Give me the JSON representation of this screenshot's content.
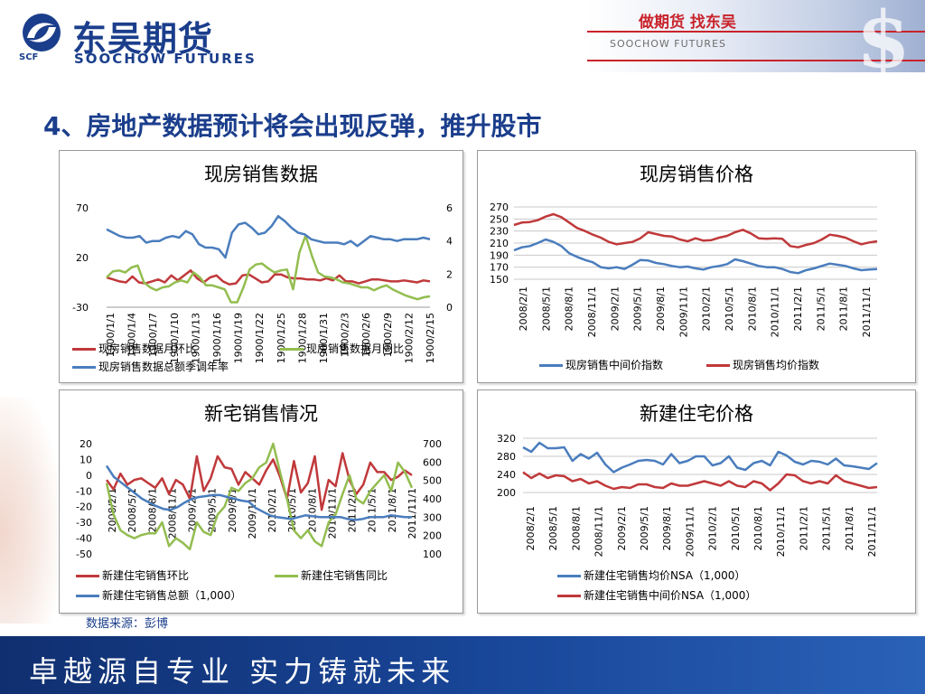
{
  "header": {
    "logo_cn": "东吴期货",
    "logo_en": "SOOCHOW FUTURES",
    "logo_abbr": "SCF",
    "slogan": "做期货 找东吴",
    "slogan_en": "SOOCHOW FUTURES",
    "dollar_glyph": "$"
  },
  "page": {
    "title": "4、房地产数据预计将会出现反弹，推升股市",
    "source": "数据来源：彭博",
    "footer": "卓越源自专业 实力铸就未来"
  },
  "chart_data": [
    {
      "type": "line",
      "title": "现房销售数据",
      "x_tick_labels": [
        "1900/1/1",
        "1900/1/4",
        "1900/1/7",
        "1900/1/10",
        "1900/1/13",
        "1900/1/16",
        "1900/1/19",
        "1900/1/22",
        "1900/1/25",
        "1900/1/28",
        "1900/1/31",
        "1900/2/3",
        "1900/2/6",
        "1900/2/9",
        "1900/2/12",
        "1900/2/15"
      ],
      "y_left_ticks": [
        "70",
        "20",
        "-30"
      ],
      "y_left_range": [
        -30,
        70
      ],
      "y_right_ticks": [
        "6",
        "4",
        "2",
        "0"
      ],
      "y_right_range": [
        0,
        6
      ],
      "legend": [
        "现房销售数据月环比",
        "现房销售数据月同比",
        "现房销售数据总额季调年率"
      ],
      "series": [
        {
          "name": "现房销售数据月环比",
          "axis": "left",
          "color": "#c0393b",
          "values": [
            0,
            -2,
            -4,
            -5,
            1,
            -5,
            -6,
            -4,
            -2,
            -5,
            2,
            -3,
            2,
            7,
            -1,
            -5,
            0,
            2,
            -4,
            -7,
            -6,
            2,
            3,
            -1,
            -5,
            -4,
            3,
            3,
            0,
            -1,
            -1,
            -2,
            -2,
            -3,
            -1,
            -3,
            2,
            -4,
            -4,
            -6,
            -4,
            -2,
            -2,
            -3,
            -4,
            -4,
            -3,
            -4,
            -5,
            -3,
            -4
          ]
        },
        {
          "name": "现房销售数据月同比",
          "axis": "left",
          "color": "#93bd4f",
          "values": [
            0,
            6,
            7,
            5,
            10,
            12,
            -5,
            -10,
            -13,
            -10,
            -9,
            -5,
            -3,
            -5,
            5,
            0,
            -8,
            -8,
            -10,
            -12,
            -25,
            -25,
            -10,
            8,
            13,
            14,
            9,
            5,
            7,
            8,
            -12,
            25,
            42,
            22,
            5,
            1,
            0,
            -2,
            -5,
            -6,
            -8,
            -10,
            -10,
            -13,
            -10,
            -8,
            -12,
            -15,
            -18,
            -20,
            -22,
            -20,
            -19
          ]
        },
        {
          "name": "现房销售数据总额季调年率",
          "axis": "right",
          "color": "#4a7dbd",
          "values": [
            4.7,
            4.5,
            4.3,
            4.2,
            4.2,
            4.3,
            3.9,
            4.0,
            4.0,
            4.2,
            4.3,
            4.2,
            4.6,
            4.4,
            3.8,
            3.6,
            3.6,
            3.5,
            3.0,
            4.5,
            5.0,
            5.1,
            4.8,
            4.4,
            4.5,
            4.9,
            5.5,
            5.2,
            4.8,
            4.5,
            4.4,
            4.1,
            4.0,
            3.9,
            3.9,
            3.9,
            3.8,
            4.0,
            3.7,
            4.0,
            4.3,
            4.2,
            4.1,
            4.1,
            4.0,
            4.1,
            4.1,
            4.1,
            4.2,
            4.1
          ]
        }
      ]
    },
    {
      "type": "line",
      "title": "现房销售价格",
      "x_tick_labels": [
        "2008/2/1",
        "2008/5/1",
        "2008/8/1",
        "2008/11/1",
        "2009/2/1",
        "2009/5/1",
        "2009/8/1",
        "2009/11/1",
        "2010/2/1",
        "2010/5/1",
        "2010/8/1",
        "2010/11/1",
        "2011/2/1",
        "2011/5/1",
        "2011/8/1",
        "2011/11/1"
      ],
      "y_ticks": [
        "270",
        "250",
        "230",
        "210",
        "190",
        "170",
        "150"
      ],
      "y_range": [
        150,
        270
      ],
      "legend": [
        "现房销售中间价指数",
        "现房销售均价指数"
      ],
      "series": [
        {
          "name": "现房销售中间价指数",
          "color": "#4a7dbd",
          "values": [
            198,
            203,
            205,
            210,
            216,
            212,
            205,
            193,
            187,
            182,
            178,
            170,
            168,
            170,
            167,
            174,
            182,
            181,
            177,
            175,
            172,
            170,
            171,
            168,
            166,
            170,
            172,
            175,
            183,
            180,
            176,
            172,
            170,
            170,
            167,
            162,
            160,
            165,
            168,
            172,
            176,
            174,
            172,
            168,
            165,
            166,
            167
          ]
        },
        {
          "name": "现房销售均价指数",
          "color": "#c0393b",
          "values": [
            240,
            244,
            245,
            248,
            254,
            258,
            253,
            244,
            235,
            230,
            224,
            219,
            212,
            208,
            210,
            212,
            218,
            228,
            225,
            222,
            221,
            216,
            213,
            218,
            214,
            215,
            219,
            222,
            228,
            232,
            226,
            218,
            217,
            218,
            217,
            205,
            203,
            207,
            210,
            216,
            224,
            222,
            219,
            213,
            208,
            211,
            213
          ]
        }
      ]
    },
    {
      "type": "line",
      "title": "新宅销售情况",
      "x_tick_labels": [
        "2008/2/1",
        "2008/5/1",
        "2008/8/1",
        "2008/11/1",
        "2009/2/1",
        "2009/5/1",
        "2009/8/1",
        "2009/11/1",
        "2010/2/1",
        "2010/5/1",
        "2010/8/1",
        "2010/11/1",
        "2011/2/1",
        "2011/5/1",
        "2011/8/1",
        "2011/11/1"
      ],
      "y_left_ticks": [
        "20",
        "10",
        "0",
        "-10",
        "-20",
        "-30",
        "-40",
        "-50"
      ],
      "y_left_range": [
        -50,
        20
      ],
      "y_right_ticks": [
        "700",
        "600",
        "500",
        "400",
        "300",
        "200",
        "100"
      ],
      "y_right_range": [
        100,
        700
      ],
      "legend": [
        "新建住宅销售环比",
        "新建住宅销售同比",
        "新建住宅销售总额（1,000）"
      ],
      "series": [
        {
          "name": "新建住宅销售环比",
          "axis": "left",
          "color": "#c0393b",
          "values": [
            -3,
            -9,
            1,
            -6,
            -3,
            -2,
            -5,
            -8,
            -2,
            -12,
            -3,
            -6,
            -15,
            12,
            -10,
            -2,
            12,
            5,
            4,
            -6,
            2,
            -2,
            -6,
            3,
            10,
            -1,
            -15,
            9,
            -11,
            -5,
            12,
            -22,
            -3,
            -7,
            14,
            -3,
            -12,
            -6,
            8,
            2,
            2,
            -3,
            -1,
            3,
            0
          ]
        },
        {
          "name": "新建住宅销售同比",
          "axis": "left",
          "color": "#93bd4f",
          "values": [
            -5,
            -25,
            -35,
            -38,
            -40,
            -38,
            -37,
            -37,
            -30,
            -45,
            -40,
            -43,
            -47,
            -30,
            -36,
            -38,
            -25,
            -20,
            -8,
            -10,
            -5,
            -2,
            5,
            8,
            20,
            2,
            -15,
            -35,
            -40,
            -35,
            -42,
            -45,
            -30,
            -25,
            -12,
            0,
            -15,
            -18,
            -10,
            -5,
            0,
            -10,
            8,
            2,
            -8
          ]
        },
        {
          "name": "新建住宅销售总额（1,000）",
          "axis": "right",
          "color": "#4a7dbd",
          "values": [
            580,
            520,
            490,
            460,
            430,
            400,
            380,
            360,
            345,
            340,
            355,
            380,
            400,
            410,
            415,
            420,
            420,
            410,
            400,
            390,
            385,
            350,
            330,
            310,
            300,
            295,
            290,
            300,
            310,
            305,
            300,
            300,
            300,
            300,
            290,
            285,
            290,
            300,
            300,
            300,
            310,
            305,
            300,
            300
          ]
        }
      ]
    },
    {
      "type": "line",
      "title": "新建住宅价格",
      "x_tick_labels": [
        "2008/2/1",
        "2008/5/1",
        "2008/8/1",
        "2008/11/1",
        "2009/2/1",
        "2009/5/1",
        "2009/8/1",
        "2009/11/1",
        "2010/2/1",
        "2010/5/1",
        "2010/8/1",
        "2010/11/1",
        "2011/2/1",
        "2011/5/1",
        "2011/8/1",
        "2011/11/1"
      ],
      "y_ticks": [
        "320",
        "280",
        "240",
        "200"
      ],
      "y_range": [
        200,
        320
      ],
      "legend": [
        "新建住宅销售均价NSA（1,000）",
        "新建住宅销售中间价NSA（1,000）"
      ],
      "series": [
        {
          "name": "新建住宅销售均价NSA（1,000）",
          "color": "#4a7dbd",
          "values": [
            300,
            290,
            310,
            298,
            298,
            300,
            270,
            285,
            275,
            288,
            262,
            245,
            255,
            262,
            270,
            272,
            270,
            262,
            285,
            265,
            270,
            280,
            280,
            260,
            265,
            280,
            255,
            250,
            265,
            270,
            260,
            290,
            282,
            268,
            262,
            270,
            268,
            262,
            275,
            260,
            258,
            255,
            252,
            265
          ]
        },
        {
          "name": "新建住宅销售中间价NSA（1,000）",
          "color": "#c0393b",
          "values": [
            245,
            232,
            242,
            232,
            238,
            236,
            225,
            230,
            220,
            225,
            215,
            208,
            212,
            210,
            218,
            218,
            212,
            210,
            220,
            215,
            215,
            220,
            225,
            220,
            215,
            225,
            215,
            212,
            225,
            220,
            205,
            220,
            240,
            238,
            225,
            220,
            225,
            220,
            238,
            225,
            220,
            215,
            210,
            212
          ]
        }
      ]
    }
  ]
}
